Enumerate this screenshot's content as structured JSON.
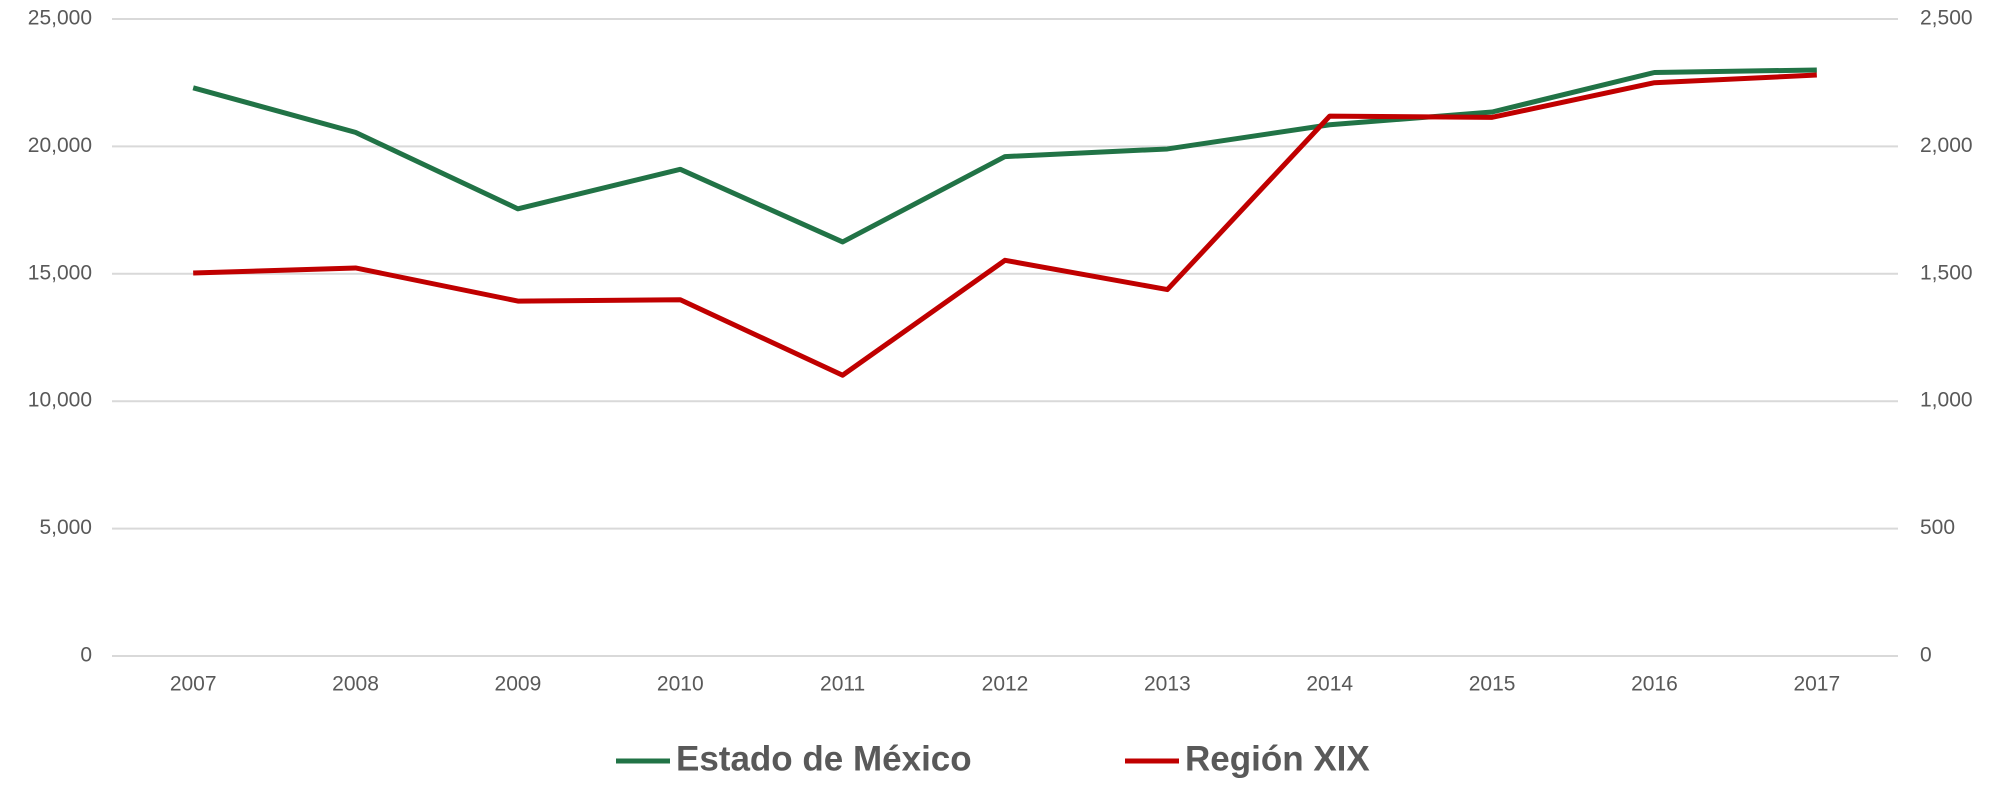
{
  "chart_data": {
    "type": "line",
    "categories": [
      "2007",
      "2008",
      "2009",
      "2010",
      "2011",
      "2012",
      "2013",
      "2014",
      "2015",
      "2016",
      "2017"
    ],
    "series": [
      {
        "name": "Estado de México",
        "color": "#217346",
        "values": [
          22300,
          20550,
          17550,
          19100,
          16250,
          19600,
          19900,
          20850,
          21350,
          22900,
          23000
        ]
      },
      {
        "name": "Región XIX",
        "color": "#c00000",
        "axis": "y2",
        "values": [
          1503,
          1523,
          1393,
          1398,
          1102,
          1553,
          1438,
          2119,
          2114,
          2250,
          2280
        ]
      }
    ],
    "ylim": [
      0,
      25000
    ],
    "yticks": [
      0,
      {
        "value": 5000,
        "label": "5,000"
      },
      {
        "value": 10000,
        "label": "10,000"
      },
      {
        "value": 15000,
        "label": "15,000"
      },
      {
        "value": 20000,
        "label": "20,000"
      },
      {
        "value": 25000,
        "label": "25,000"
      }
    ],
    "y2lim": [
      0,
      2500
    ],
    "y2ticks": [
      0,
      500,
      {
        "value": 1000,
        "label": "1,000"
      },
      {
        "value": 1500,
        "label": "1,500"
      },
      {
        "value": 2000,
        "label": "2,000"
      },
      {
        "value": 2500,
        "label": "2,500"
      }
    ],
    "grid": true,
    "legend": "bottom"
  }
}
